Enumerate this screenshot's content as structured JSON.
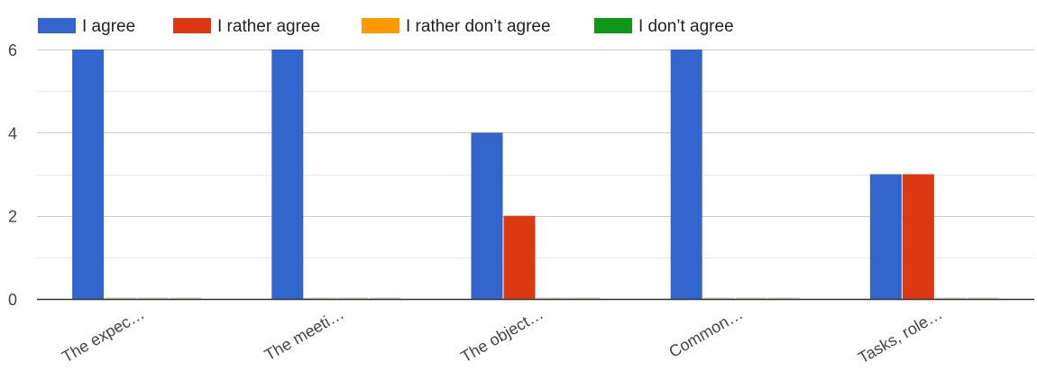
{
  "chart_data": {
    "type": "bar",
    "categories": [
      "The expec…",
      "The meeti…",
      "The object…",
      "Common…",
      "Tasks, role…"
    ],
    "series": [
      {
        "name": "I agree",
        "color": "#3366cc",
        "values": [
          6,
          6,
          4,
          6,
          3
        ]
      },
      {
        "name": "I rather agree",
        "color": "#dc3912",
        "values": [
          0,
          0,
          2,
          0,
          3
        ]
      },
      {
        "name": "I rather don’t agree",
        "color": "#ff9900",
        "values": [
          0,
          0,
          0,
          0,
          0
        ]
      },
      {
        "name": "I don’t agree",
        "color": "#109618",
        "values": [
          0,
          0,
          0,
          0,
          0
        ]
      }
    ],
    "yticks": [
      0,
      2,
      4,
      6
    ],
    "ylim": [
      0,
      6.5
    ],
    "grid": true,
    "legend_position": "top-left",
    "title": "",
    "xlabel": "",
    "ylabel": ""
  }
}
